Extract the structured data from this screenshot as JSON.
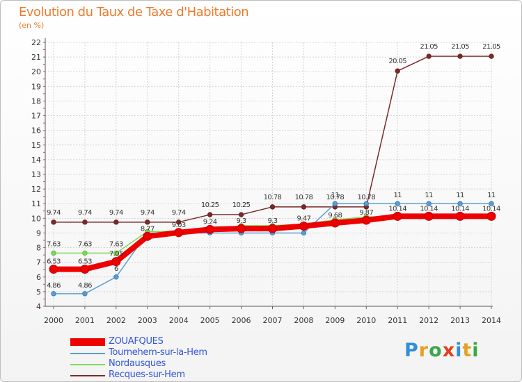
{
  "title": "Evolution du Taux de Taxe d'Habitation",
  "subtitle": "(en %)",
  "logo": {
    "text": "Proxiti",
    "colors": [
      "#2f8fd8",
      "#e8a020",
      "#3aa84a",
      "#e04020",
      "#2f8fd8",
      "#e8a020",
      "#3aa84a"
    ]
  },
  "chart_data": {
    "type": "line",
    "x": [
      2000,
      2001,
      2002,
      2003,
      2004,
      2005,
      2006,
      2007,
      2008,
      2009,
      2010,
      2011,
      2012,
      2013,
      2014
    ],
    "ylim": [
      4,
      22
    ],
    "yticks": [
      4,
      5,
      6,
      7,
      8,
      9,
      10,
      11,
      12,
      13,
      14,
      15,
      16,
      17,
      18,
      19,
      20,
      21,
      22
    ],
    "grid": true,
    "legend_position": "bottom-left",
    "series": [
      {
        "name": "Recques-sur-Hem",
        "color": "#7a2a2a",
        "values": [
          9.74,
          9.74,
          9.74,
          9.74,
          9.74,
          10.25,
          10.25,
          10.78,
          10.78,
          10.78,
          10.78,
          20.05,
          21.05,
          21.05,
          21.05
        ],
        "labels": [
          "9.74",
          "9.74",
          "9.74",
          "9.74",
          "9.74",
          "10.25",
          "10.25",
          "10.78",
          "10.78",
          "10.78",
          "10.78",
          "20.05",
          "21.05",
          "21.05",
          "21.05"
        ]
      },
      {
        "name": "Tournehem-sur-la-Hem",
        "color": "#5a9fd4",
        "values": [
          4.86,
          4.86,
          6,
          9,
          9,
          9,
          9,
          9,
          9,
          11,
          11,
          11,
          11,
          11,
          11
        ],
        "labels": [
          "4.86",
          "4.86",
          "6",
          "",
          "",
          "",
          "",
          "",
          "",
          "11",
          "",
          "11",
          "11",
          "11",
          "11"
        ]
      },
      {
        "name": "Nordausques",
        "color": "#7ed957",
        "values": [
          7.63,
          7.63,
          7.63,
          9.1,
          9.1,
          9.1,
          9.5,
          9.5,
          9.6,
          9.9,
          10.1,
          10.14,
          10.14,
          10.14,
          10.14
        ],
        "labels": [
          "7.63",
          "7.63",
          "7.63",
          "",
          "",
          "",
          "",
          "",
          "",
          "",
          "",
          "",
          "",
          "",
          ""
        ]
      },
      {
        "name": "ZOUAFQUES",
        "color": "#ee0000",
        "values": [
          6.53,
          6.53,
          7.05,
          8.77,
          9.03,
          9.24,
          9.3,
          9.3,
          9.47,
          9.68,
          9.87,
          10.14,
          10.14,
          10.14,
          10.14
        ],
        "labels": [
          "6.53",
          "6.53",
          "7.05",
          "8.77",
          "9.03",
          "9.24",
          "9.3",
          "9.3",
          "9.47",
          "9.68",
          "9.87",
          "10.14",
          "10.14",
          "10.14",
          "10.14"
        ]
      }
    ]
  }
}
